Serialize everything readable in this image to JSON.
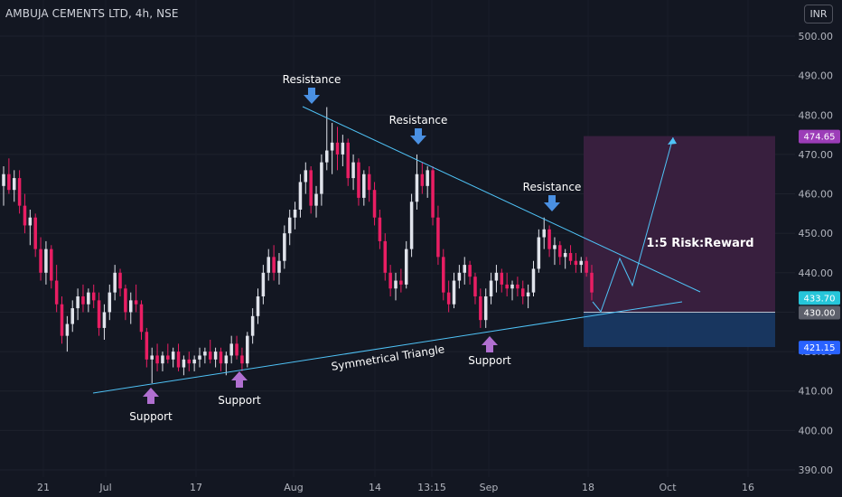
{
  "header": {
    "title": "AMBUJA CEMENTS LTD, 4h, NSE",
    "currency": "INR"
  },
  "colors": {
    "background": "#131722",
    "up_candle": "#e0e3eb",
    "down_candle": "#e91e63",
    "trendline": "#4fc3f7",
    "marker_blue": "#4a90e2",
    "marker_purple": "#b06fd0",
    "reward_zone": "#3d2040",
    "risk_zone": "#1c3a5e",
    "axis_text": "#b2b5be"
  },
  "chart_data": {
    "type": "candlestick",
    "ylim": [
      387,
      506
    ],
    "y_ticks": [
      390,
      400,
      410,
      420,
      430,
      440,
      450,
      460,
      470,
      480,
      490,
      500
    ],
    "y_tick_labels": [
      "390.00",
      "400.00",
      "410.00",
      "420.00",
      "430.00",
      "440.00",
      "450.00",
      "460.00",
      "470.00",
      "480.00",
      "490.00",
      "500.00"
    ],
    "x_tick_labels": [
      "21",
      "Jul",
      "17",
      "Aug",
      "14",
      "13:15",
      "Sep",
      "18",
      "Oct",
      "16"
    ],
    "price_labels": [
      {
        "value": 474.65,
        "label": "474.65",
        "color": "#9c3db8"
      },
      {
        "value": 433.7,
        "label": "433.70",
        "color": "#26c6da"
      },
      {
        "value": 430.0,
        "label": "430.00",
        "color": "#5d606b"
      },
      {
        "value": 421.15,
        "label": "421.15",
        "color": "#2962ff"
      }
    ],
    "candles": [
      {
        "o": 462,
        "h": 467,
        "l": 457,
        "c": 465
      },
      {
        "o": 465,
        "h": 469,
        "l": 460,
        "c": 461
      },
      {
        "o": 461,
        "h": 466,
        "l": 458,
        "c": 464
      },
      {
        "o": 464,
        "h": 466,
        "l": 455,
        "c": 457
      },
      {
        "o": 457,
        "h": 460,
        "l": 450,
        "c": 452
      },
      {
        "o": 452,
        "h": 456,
        "l": 447,
        "c": 454
      },
      {
        "o": 454,
        "h": 455,
        "l": 444,
        "c": 446
      },
      {
        "o": 446,
        "h": 449,
        "l": 438,
        "c": 440
      },
      {
        "o": 440,
        "h": 448,
        "l": 437,
        "c": 446
      },
      {
        "o": 446,
        "h": 447,
        "l": 436,
        "c": 438
      },
      {
        "o": 438,
        "h": 442,
        "l": 430,
        "c": 432
      },
      {
        "o": 432,
        "h": 434,
        "l": 422,
        "c": 424
      },
      {
        "o": 424,
        "h": 429,
        "l": 420,
        "c": 427
      },
      {
        "o": 427,
        "h": 433,
        "l": 425,
        "c": 431
      },
      {
        "o": 431,
        "h": 436,
        "l": 428,
        "c": 434
      },
      {
        "o": 434,
        "h": 437,
        "l": 430,
        "c": 432
      },
      {
        "o": 432,
        "h": 436,
        "l": 430,
        "c": 435
      },
      {
        "o": 435,
        "h": 437,
        "l": 431,
        "c": 433
      },
      {
        "o": 433,
        "h": 435,
        "l": 424,
        "c": 426
      },
      {
        "o": 426,
        "h": 432,
        "l": 423,
        "c": 430
      },
      {
        "o": 430,
        "h": 437,
        "l": 428,
        "c": 435
      },
      {
        "o": 435,
        "h": 442,
        "l": 433,
        "c": 440
      },
      {
        "o": 440,
        "h": 441,
        "l": 434,
        "c": 436
      },
      {
        "o": 436,
        "h": 437,
        "l": 428,
        "c": 430
      },
      {
        "o": 430,
        "h": 435,
        "l": 427,
        "c": 433
      },
      {
        "o": 433,
        "h": 437,
        "l": 430,
        "c": 432
      },
      {
        "o": 432,
        "h": 433,
        "l": 423,
        "c": 425
      },
      {
        "o": 425,
        "h": 426,
        "l": 416,
        "c": 418
      },
      {
        "o": 418,
        "h": 421,
        "l": 412,
        "c": 419
      },
      {
        "o": 419,
        "h": 422,
        "l": 415,
        "c": 417
      },
      {
        "o": 417,
        "h": 420,
        "l": 415,
        "c": 419
      },
      {
        "o": 419,
        "h": 422,
        "l": 417,
        "c": 418
      },
      {
        "o": 418,
        "h": 421,
        "l": 416,
        "c": 420
      },
      {
        "o": 420,
        "h": 422,
        "l": 415,
        "c": 416
      },
      {
        "o": 416,
        "h": 419,
        "l": 414,
        "c": 418
      },
      {
        "o": 418,
        "h": 420,
        "l": 415,
        "c": 417
      },
      {
        "o": 417,
        "h": 419,
        "l": 415,
        "c": 418
      },
      {
        "o": 418,
        "h": 421,
        "l": 416,
        "c": 419
      },
      {
        "o": 419,
        "h": 421,
        "l": 417,
        "c": 420
      },
      {
        "o": 420,
        "h": 423,
        "l": 417,
        "c": 418
      },
      {
        "o": 418,
        "h": 421,
        "l": 416,
        "c": 420
      },
      {
        "o": 420,
        "h": 421,
        "l": 415,
        "c": 417
      },
      {
        "o": 417,
        "h": 420,
        "l": 414,
        "c": 419
      },
      {
        "o": 419,
        "h": 424,
        "l": 417,
        "c": 422
      },
      {
        "o": 422,
        "h": 424,
        "l": 418,
        "c": 419
      },
      {
        "o": 419,
        "h": 421,
        "l": 415,
        "c": 417
      },
      {
        "o": 417,
        "h": 425,
        "l": 416,
        "c": 424
      },
      {
        "o": 424,
        "h": 431,
        "l": 422,
        "c": 429
      },
      {
        "o": 429,
        "h": 436,
        "l": 427,
        "c": 434
      },
      {
        "o": 434,
        "h": 442,
        "l": 432,
        "c": 440
      },
      {
        "o": 440,
        "h": 446,
        "l": 438,
        "c": 444
      },
      {
        "o": 444,
        "h": 447,
        "l": 438,
        "c": 440
      },
      {
        "o": 440,
        "h": 445,
        "l": 437,
        "c": 443
      },
      {
        "o": 443,
        "h": 452,
        "l": 441,
        "c": 450
      },
      {
        "o": 450,
        "h": 456,
        "l": 447,
        "c": 454
      },
      {
        "o": 454,
        "h": 458,
        "l": 451,
        "c": 456
      },
      {
        "o": 456,
        "h": 465,
        "l": 454,
        "c": 463
      },
      {
        "o": 463,
        "h": 468,
        "l": 460,
        "c": 466
      },
      {
        "o": 466,
        "h": 467,
        "l": 455,
        "c": 457
      },
      {
        "o": 457,
        "h": 462,
        "l": 454,
        "c": 460
      },
      {
        "o": 460,
        "h": 470,
        "l": 457,
        "c": 468
      },
      {
        "o": 468,
        "h": 482,
        "l": 466,
        "c": 471
      },
      {
        "o": 471,
        "h": 478,
        "l": 465,
        "c": 473
      },
      {
        "o": 473,
        "h": 477,
        "l": 466,
        "c": 470
      },
      {
        "o": 470,
        "h": 475,
        "l": 467,
        "c": 473
      },
      {
        "o": 473,
        "h": 474,
        "l": 462,
        "c": 464
      },
      {
        "o": 464,
        "h": 470,
        "l": 461,
        "c": 468
      },
      {
        "o": 468,
        "h": 469,
        "l": 457,
        "c": 459
      },
      {
        "o": 459,
        "h": 466,
        "l": 457,
        "c": 465
      },
      {
        "o": 465,
        "h": 467,
        "l": 458,
        "c": 461
      },
      {
        "o": 461,
        "h": 463,
        "l": 452,
        "c": 454
      },
      {
        "o": 454,
        "h": 456,
        "l": 446,
        "c": 448
      },
      {
        "o": 448,
        "h": 450,
        "l": 438,
        "c": 440
      },
      {
        "o": 440,
        "h": 442,
        "l": 434,
        "c": 436
      },
      {
        "o": 436,
        "h": 440,
        "l": 433,
        "c": 438
      },
      {
        "o": 438,
        "h": 441,
        "l": 435,
        "c": 437
      },
      {
        "o": 437,
        "h": 448,
        "l": 436,
        "c": 446
      },
      {
        "o": 446,
        "h": 460,
        "l": 444,
        "c": 458
      },
      {
        "o": 458,
        "h": 470,
        "l": 456,
        "c": 465
      },
      {
        "o": 465,
        "h": 468,
        "l": 460,
        "c": 462
      },
      {
        "o": 462,
        "h": 467,
        "l": 459,
        "c": 466
      },
      {
        "o": 466,
        "h": 467,
        "l": 452,
        "c": 454
      },
      {
        "o": 454,
        "h": 457,
        "l": 442,
        "c": 444
      },
      {
        "o": 444,
        "h": 446,
        "l": 433,
        "c": 435
      },
      {
        "o": 435,
        "h": 438,
        "l": 430,
        "c": 432
      },
      {
        "o": 432,
        "h": 440,
        "l": 431,
        "c": 438
      },
      {
        "o": 438,
        "h": 442,
        "l": 436,
        "c": 440
      },
      {
        "o": 440,
        "h": 444,
        "l": 437,
        "c": 442
      },
      {
        "o": 442,
        "h": 443,
        "l": 437,
        "c": 439
      },
      {
        "o": 439,
        "h": 440,
        "l": 432,
        "c": 434
      },
      {
        "o": 434,
        "h": 436,
        "l": 426,
        "c": 428
      },
      {
        "o": 428,
        "h": 436,
        "l": 426,
        "c": 434
      },
      {
        "o": 434,
        "h": 440,
        "l": 432,
        "c": 438
      },
      {
        "o": 438,
        "h": 442,
        "l": 435,
        "c": 440
      },
      {
        "o": 440,
        "h": 441,
        "l": 435,
        "c": 437
      },
      {
        "o": 437,
        "h": 440,
        "l": 434,
        "c": 436
      },
      {
        "o": 436,
        "h": 438,
        "l": 433,
        "c": 437
      },
      {
        "o": 437,
        "h": 439,
        "l": 434,
        "c": 436
      },
      {
        "o": 436,
        "h": 438,
        "l": 432,
        "c": 434
      },
      {
        "o": 434,
        "h": 437,
        "l": 431,
        "c": 435
      },
      {
        "o": 435,
        "h": 443,
        "l": 434,
        "c": 441
      },
      {
        "o": 441,
        "h": 451,
        "l": 440,
        "c": 449
      },
      {
        "o": 449,
        "h": 454,
        "l": 446,
        "c": 451
      },
      {
        "o": 451,
        "h": 452,
        "l": 444,
        "c": 446
      },
      {
        "o": 446,
        "h": 449,
        "l": 442,
        "c": 447
      },
      {
        "o": 447,
        "h": 448,
        "l": 442,
        "c": 444
      },
      {
        "o": 444,
        "h": 446,
        "l": 441,
        "c": 445
      },
      {
        "o": 445,
        "h": 447,
        "l": 442,
        "c": 443
      },
      {
        "o": 443,
        "h": 445,
        "l": 440,
        "c": 442
      },
      {
        "o": 442,
        "h": 444,
        "l": 440,
        "c": 443
      },
      {
        "o": 443,
        "h": 444,
        "l": 439,
        "c": 440
      },
      {
        "o": 440,
        "h": 442,
        "l": 433,
        "c": 435
      }
    ],
    "candle_axis_fractions": [
      0.14,
      0.7
    ]
  },
  "annotations": {
    "resistance_1": "Resistance",
    "resistance_2": "Resistance",
    "resistance_3": "Resistance",
    "support_1": "Support",
    "support_2": "Support",
    "support_3": "Support",
    "triangle_label": "Symmetrical Triangle",
    "rr_label": "1:5 Risk:Reward"
  }
}
